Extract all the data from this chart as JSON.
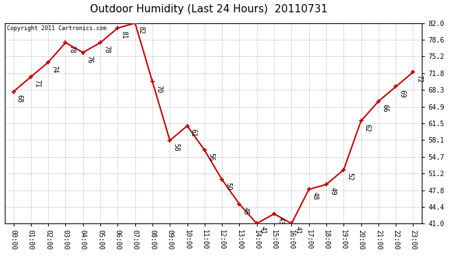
{
  "title": "Outdoor Humidity (Last 24 Hours)  20110731",
  "copyright_text": "Copyright 2011 Cartronics.com",
  "x_labels": [
    "00:00",
    "01:00",
    "02:00",
    "03:00",
    "04:00",
    "05:00",
    "06:00",
    "07:00",
    "08:00",
    "09:00",
    "10:00",
    "11:00",
    "12:00",
    "13:00",
    "14:00",
    "15:00",
    "16:00",
    "17:00",
    "18:00",
    "19:00",
    "20:00",
    "21:00",
    "22:00",
    "23:00"
  ],
  "y_values": [
    68,
    71,
    74,
    78,
    76,
    78,
    81,
    82,
    70,
    58,
    61,
    56,
    50,
    45,
    41,
    43,
    41,
    48,
    49,
    52,
    62,
    66,
    69,
    72
  ],
  "y_ticks": [
    41.0,
    44.4,
    47.8,
    51.2,
    54.7,
    58.1,
    61.5,
    64.9,
    68.3,
    71.8,
    75.2,
    78.6,
    82.0
  ],
  "ylim": [
    41.0,
    82.0
  ],
  "line_color": "#cc0000",
  "marker_color": "#cc0000",
  "bg_color": "#ffffff",
  "plot_bg_color": "#ffffff",
  "grid_color": "#bbbbbb",
  "title_fontsize": 11,
  "tick_fontsize": 7,
  "annotation_fontsize": 7,
  "copyright_fontsize": 6
}
